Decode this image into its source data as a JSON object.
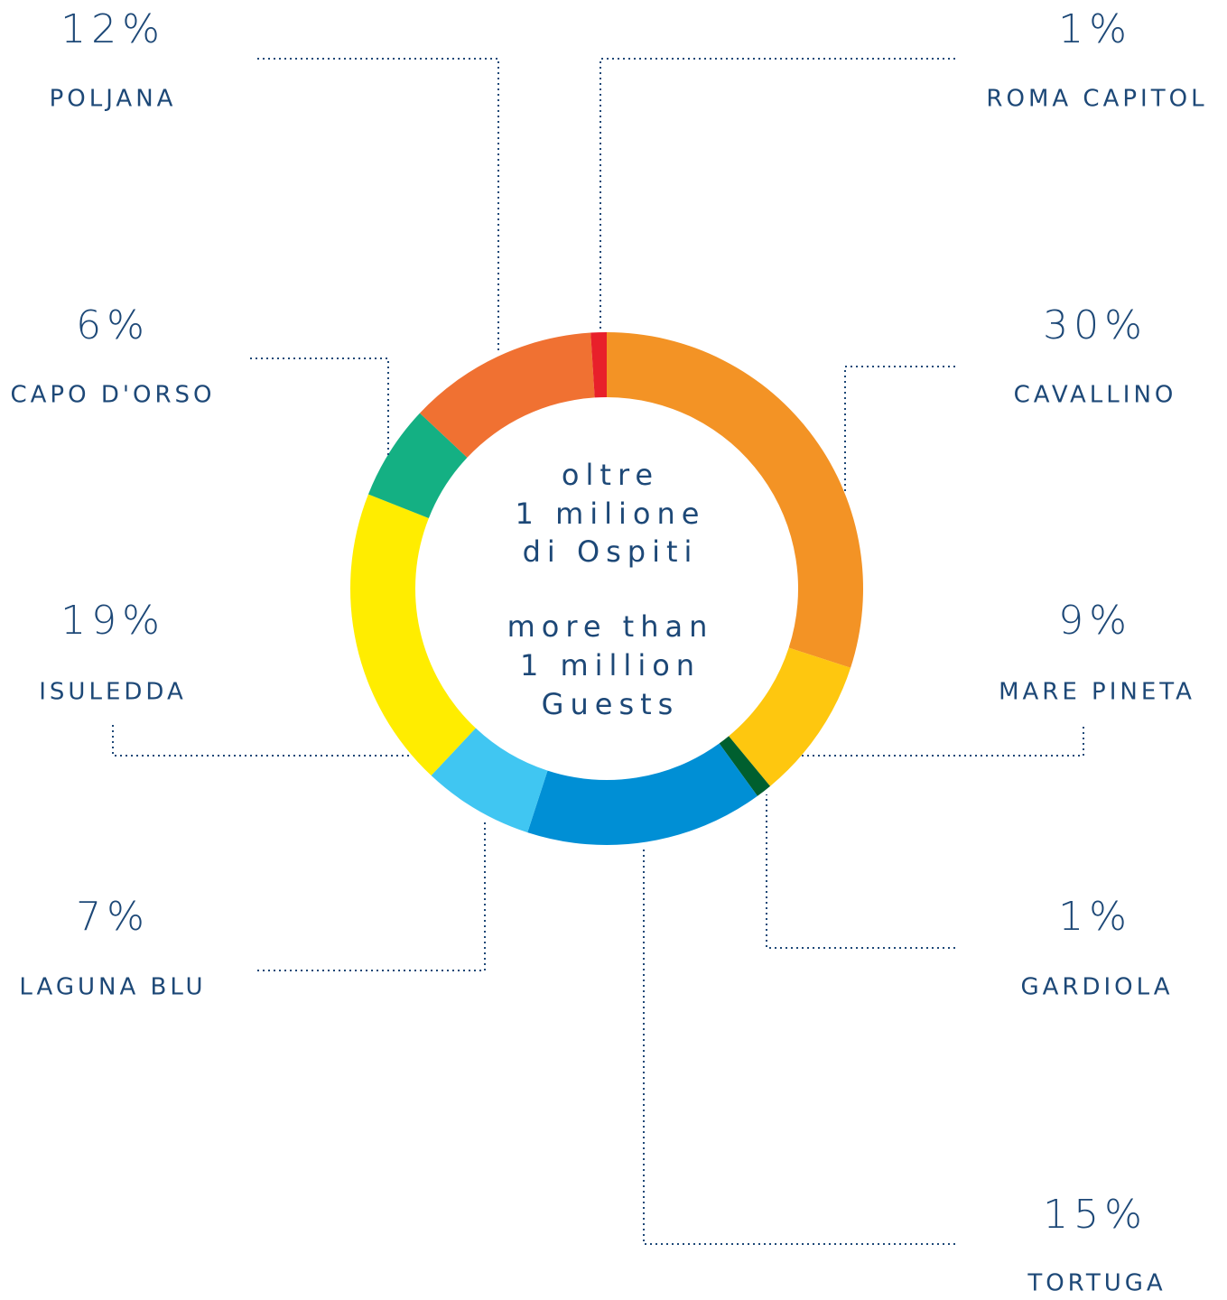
{
  "chart_data": {
    "type": "donut",
    "categories": [
      "CAVALLINO",
      "MARE PINETA",
      "GARDIOLA",
      "TORTUGA",
      "LAGUNA BLU",
      "ISULEDDA",
      "CAPO D'ORSO",
      "POLJANA",
      "ROMA CAPITOL"
    ],
    "values": [
      30,
      9,
      1,
      15,
      7,
      19,
      6,
      12,
      1
    ],
    "value_labels": [
      "30%",
      "9%",
      "1%",
      "15%",
      "7%",
      "19%",
      "6%",
      "12%",
      "1%"
    ],
    "colors": [
      "#f39325",
      "#fec70f",
      "#005f2f",
      "#008fd5",
      "#40c6f2",
      "#ffed00",
      "#14b083",
      "#f07132",
      "#e8202a"
    ],
    "center_text": [
      [
        "oltre",
        "1 milione",
        "di Ospiti"
      ],
      [
        "more than",
        "1 million",
        "Guests"
      ]
    ]
  }
}
